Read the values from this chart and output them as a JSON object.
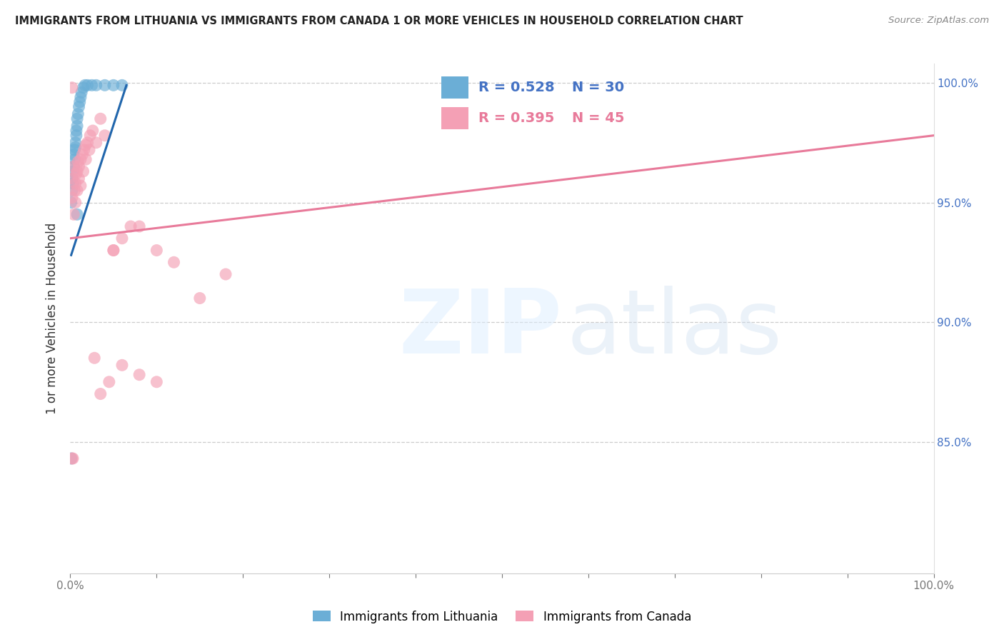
{
  "title": "IMMIGRANTS FROM LITHUANIA VS IMMIGRANTS FROM CANADA 1 OR MORE VEHICLES IN HOUSEHOLD CORRELATION CHART",
  "source": "Source: ZipAtlas.com",
  "ylabel": "1 or more Vehicles in Household",
  "color_lithuania": "#6baed6",
  "color_canada": "#f4a0b5",
  "color_line_lithuania": "#2166ac",
  "color_line_canada": "#e87a9a",
  "legend1_label": "Immigrants from Lithuania",
  "legend2_label": "Immigrants from Canada",
  "R1": "0.528",
  "N1": "30",
  "R2": "0.395",
  "N2": "45",
  "blue_x": [
    0.001,
    0.002,
    0.002,
    0.003,
    0.003,
    0.004,
    0.004,
    0.005,
    0.005,
    0.006,
    0.006,
    0.007,
    0.007,
    0.008,
    0.008,
    0.009,
    0.01,
    0.011,
    0.012,
    0.013,
    0.015,
    0.017,
    0.02,
    0.025,
    0.03,
    0.04,
    0.05,
    0.06,
    0.001,
    0.008
  ],
  "blue_y": [
    0.95,
    0.96,
    0.955,
    0.963,
    0.958,
    0.965,
    0.97,
    0.968,
    0.972,
    0.975,
    0.973,
    0.978,
    0.98,
    0.982,
    0.985,
    0.987,
    0.99,
    0.992,
    0.994,
    0.996,
    0.998,
    0.999,
    0.999,
    0.999,
    0.999,
    0.999,
    0.999,
    0.999,
    0.843,
    0.945
  ],
  "pink_x": [
    0.002,
    0.003,
    0.004,
    0.005,
    0.006,
    0.007,
    0.008,
    0.009,
    0.01,
    0.012,
    0.014,
    0.016,
    0.018,
    0.02,
    0.023,
    0.026,
    0.03,
    0.035,
    0.04,
    0.05,
    0.06,
    0.07,
    0.08,
    0.1,
    0.12,
    0.15,
    0.18,
    0.002,
    0.004,
    0.006,
    0.008,
    0.01,
    0.012,
    0.015,
    0.018,
    0.022,
    0.028,
    0.035,
    0.045,
    0.06,
    0.08,
    0.1,
    0.002,
    0.003,
    0.05
  ],
  "pink_y": [
    0.998,
    0.96,
    0.965,
    0.955,
    0.958,
    0.962,
    0.963,
    0.967,
    0.965,
    0.968,
    0.97,
    0.972,
    0.974,
    0.975,
    0.978,
    0.98,
    0.975,
    0.985,
    0.978,
    0.93,
    0.935,
    0.94,
    0.94,
    0.93,
    0.925,
    0.91,
    0.92,
    0.952,
    0.945,
    0.95,
    0.955,
    0.96,
    0.957,
    0.963,
    0.968,
    0.972,
    0.885,
    0.87,
    0.875,
    0.882,
    0.878,
    0.875,
    0.843,
    0.843,
    0.93
  ],
  "xlim": [
    0.0,
    1.0
  ],
  "ylim": [
    0.795,
    1.008
  ],
  "yticks": [
    0.85,
    0.9,
    0.95,
    1.0
  ],
  "xticks": [
    0.0,
    0.1,
    0.2,
    0.3,
    0.4,
    0.5,
    0.6,
    0.7,
    0.8,
    0.9,
    1.0
  ],
  "x_tick_labels": [
    "0.0%",
    "",
    "",
    "",
    "",
    "",
    "",
    "",
    "",
    "",
    "100.0%"
  ],
  "y_tick_labels_right": [
    "85.0%",
    "90.0%",
    "95.0%",
    "100.0%"
  ],
  "grid_color": "#cccccc"
}
